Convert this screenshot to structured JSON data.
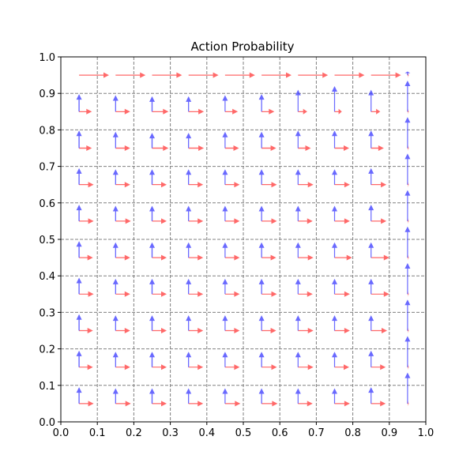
{
  "chart_data": {
    "type": "quiver",
    "title": "Action Probability",
    "xlabel": "",
    "ylabel": "",
    "xlim": [
      0,
      1
    ],
    "ylim": [
      0,
      1
    ],
    "grid": true,
    "grid_style": "dashed",
    "xticks": [
      "0.0",
      "0.1",
      "0.2",
      "0.3",
      "0.4",
      "0.5",
      "0.6",
      "0.7",
      "0.8",
      "0.9",
      "1.0"
    ],
    "yticks": [
      "0.0",
      "0.1",
      "0.2",
      "0.3",
      "0.4",
      "0.5",
      "0.6",
      "0.7",
      "0.8",
      "0.9",
      "1.0"
    ],
    "x": [
      0.05,
      0.15,
      0.25,
      0.35,
      0.45,
      0.55,
      0.65,
      0.75,
      0.85,
      0.95
    ],
    "y": [
      0.05,
      0.15,
      0.25,
      0.35,
      0.45,
      0.55,
      0.65,
      0.75,
      0.85,
      0.95
    ],
    "series": [
      {
        "color": "#ff4444",
        "direction": "right",
        "values": [
          [
            0.4,
            0.42,
            0.4,
            0.4,
            0.42,
            0.44,
            0.4,
            0.42,
            0.4,
            0.03
          ],
          [
            0.38,
            0.4,
            0.4,
            0.4,
            0.4,
            0.42,
            0.42,
            0.4,
            0.4,
            0.03
          ],
          [
            0.38,
            0.4,
            0.4,
            0.4,
            0.4,
            0.4,
            0.42,
            0.42,
            0.44,
            0.03
          ],
          [
            0.4,
            0.4,
            0.4,
            0.4,
            0.4,
            0.42,
            0.4,
            0.42,
            0.5,
            0.03
          ],
          [
            0.38,
            0.4,
            0.4,
            0.4,
            0.4,
            0.4,
            0.42,
            0.48,
            0.5,
            0.03
          ],
          [
            0.4,
            0.42,
            0.4,
            0.4,
            0.4,
            0.42,
            0.4,
            0.42,
            0.42,
            0.03
          ],
          [
            0.4,
            0.4,
            0.4,
            0.4,
            0.4,
            0.42,
            0.42,
            0.42,
            0.42,
            0.03
          ],
          [
            0.35,
            0.4,
            0.45,
            0.42,
            0.38,
            0.4,
            0.35,
            0.4,
            0.35,
            0.03
          ],
          [
            0.35,
            0.4,
            0.45,
            0.42,
            0.35,
            0.35,
            0.25,
            0.2,
            0.25,
            0.03
          ],
          [
            0.82,
            0.82,
            0.82,
            0.82,
            0.82,
            0.82,
            0.82,
            0.82,
            0.82,
            0.03
          ]
        ]
      },
      {
        "color": "#4444ff",
        "direction": "up",
        "values": [
          [
            0.45,
            0.42,
            0.42,
            0.42,
            0.42,
            0.42,
            0.42,
            0.42,
            0.45,
            0.85
          ],
          [
            0.45,
            0.42,
            0.42,
            0.42,
            0.42,
            0.42,
            0.42,
            0.42,
            0.45,
            0.85
          ],
          [
            0.45,
            0.42,
            0.42,
            0.42,
            0.42,
            0.42,
            0.42,
            0.42,
            0.42,
            0.85
          ],
          [
            0.45,
            0.42,
            0.42,
            0.42,
            0.42,
            0.42,
            0.42,
            0.42,
            0.42,
            0.85
          ],
          [
            0.45,
            0.42,
            0.42,
            0.42,
            0.42,
            0.42,
            0.42,
            0.42,
            0.42,
            0.85
          ],
          [
            0.45,
            0.42,
            0.42,
            0.42,
            0.42,
            0.42,
            0.42,
            0.42,
            0.45,
            0.85
          ],
          [
            0.45,
            0.42,
            0.42,
            0.42,
            0.42,
            0.42,
            0.42,
            0.42,
            0.45,
            0.85
          ],
          [
            0.48,
            0.45,
            0.42,
            0.42,
            0.45,
            0.45,
            0.48,
            0.48,
            0.48,
            0.85
          ],
          [
            0.48,
            0.45,
            0.42,
            0.42,
            0.45,
            0.48,
            0.6,
            0.7,
            0.6,
            0.85
          ],
          [
            0.0,
            0.0,
            0.0,
            0.0,
            0.0,
            0.0,
            0.0,
            0.0,
            0.0,
            0.1
          ]
        ]
      }
    ]
  }
}
